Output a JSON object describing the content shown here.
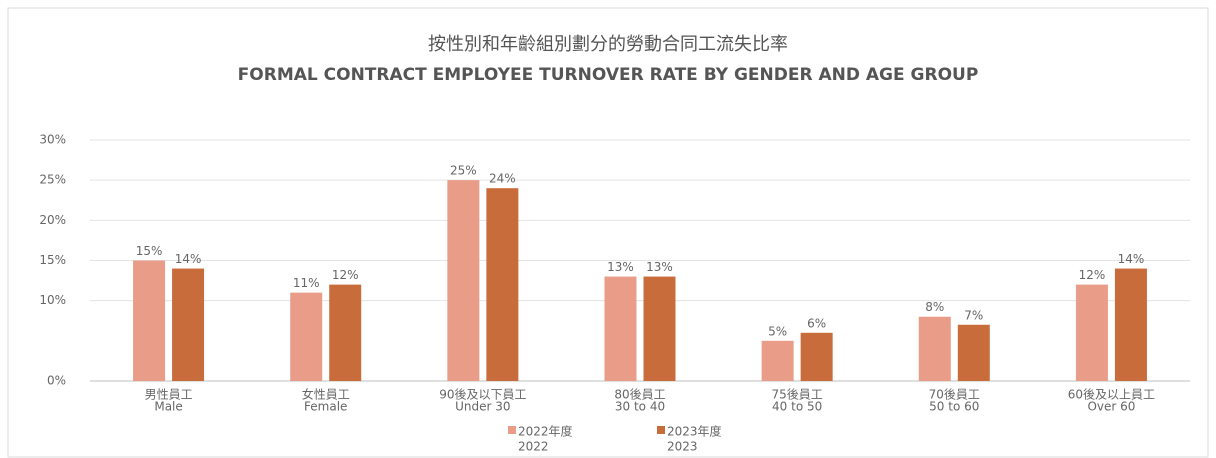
{
  "chart_data": {
    "type": "bar",
    "title": "按性別和年齡組別劃分的勞動合同工流失比率",
    "subtitle": "FORMAL CONTRACT EMPLOYEE TURNOVER RATE BY GENDER AND AGE GROUP",
    "categories": [
      [
        "男性員工",
        "Male"
      ],
      [
        "女性員工",
        "Female"
      ],
      [
        "90後及以下員工",
        "Under 30"
      ],
      [
        "80後員工",
        "30 to 40"
      ],
      [
        "75後員工",
        "40 to 50"
      ],
      [
        "70後員工",
        "50 to 60"
      ],
      [
        "60後及以上員工",
        "Over 60"
      ]
    ],
    "series": [
      {
        "name": [
          "2022年度",
          "2022"
        ],
        "color": "#e99c88",
        "values": [
          15,
          11,
          25,
          13,
          5,
          8,
          12
        ],
        "value_labels": [
          "15%",
          "11%",
          "25%",
          "13%",
          "5%",
          "8%",
          "12%"
        ]
      },
      {
        "name": [
          "2023年度",
          "2023"
        ],
        "color": "#c96c3b",
        "values": [
          14,
          12,
          24,
          13,
          6,
          7,
          14
        ],
        "value_labels": [
          "14%",
          "12%",
          "24%",
          "13%",
          "6%",
          "7%",
          "14%"
        ]
      }
    ],
    "ylim": [
      0,
      30
    ],
    "yticks": [
      {
        "value": 0,
        "label": "0%"
      },
      {
        "value": 10,
        "label": "10%"
      },
      {
        "value": 15,
        "label": "15%"
      },
      {
        "value": 20,
        "label": "20%"
      },
      {
        "value": 25,
        "label": "25%"
      },
      {
        "value": 30,
        "label": "30%"
      }
    ],
    "grid": true,
    "legend": "bottom"
  }
}
